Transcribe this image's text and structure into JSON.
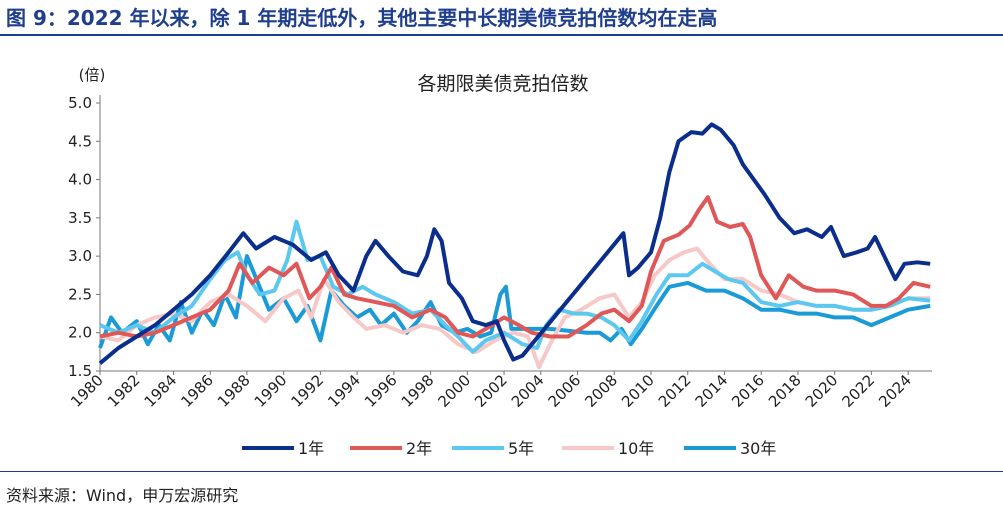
{
  "figure": {
    "title": "图 9：2022 年以来，除 1 年期走低外，其他主要中长期美债竞拍倍数均在走高",
    "source": "资料来源：Wind，申万宏源研究"
  },
  "chart_data": {
    "type": "line",
    "title": "各期限美债竞拍倍数",
    "ylabel": "(倍)",
    "xlabel": "",
    "xlim": [
      1980,
      2025.3
    ],
    "ylim": [
      1.5,
      5.0
    ],
    "yticks": [
      "1.5",
      "2.0",
      "2.5",
      "3.0",
      "3.5",
      "4.0",
      "4.5",
      "5.0"
    ],
    "xticks": [
      "1980",
      "1982",
      "1984",
      "1986",
      "1988",
      "1990",
      "1992",
      "1994",
      "1996",
      "1998",
      "2000",
      "2002",
      "2004",
      "2006",
      "2008",
      "2010",
      "2012",
      "2014",
      "2016",
      "2018",
      "2020",
      "2022",
      "2024"
    ],
    "legend_position": "bottom",
    "grid": false,
    "series": [
      {
        "name": "1年",
        "color": "#0b2d8c",
        "points": [
          [
            1980,
            1.6
          ],
          [
            1981,
            1.8
          ],
          [
            1982,
            1.95
          ],
          [
            1983,
            2.1
          ],
          [
            1984,
            2.3
          ],
          [
            1985,
            2.5
          ],
          [
            1986,
            2.75
          ],
          [
            1987,
            3.05
          ],
          [
            1987.8,
            3.3
          ],
          [
            1988.5,
            3.1
          ],
          [
            1989.5,
            3.25
          ],
          [
            1990.5,
            3.15
          ],
          [
            1991.5,
            2.95
          ],
          [
            1992.3,
            3.05
          ],
          [
            1993,
            2.75
          ],
          [
            1993.8,
            2.55
          ],
          [
            1994.5,
            3.0
          ],
          [
            1995,
            3.2
          ],
          [
            1995.7,
            3.0
          ],
          [
            1996.5,
            2.8
          ],
          [
            1997.3,
            2.75
          ],
          [
            1997.8,
            3.0
          ],
          [
            1998.2,
            3.35
          ],
          [
            1998.6,
            3.2
          ],
          [
            1999,
            2.65
          ],
          [
            1999.7,
            2.45
          ],
          [
            2000.3,
            2.15
          ],
          [
            2001,
            2.1
          ],
          [
            2001.6,
            2.15
          ],
          [
            2002,
            1.9
          ],
          [
            2002.5,
            1.65
          ],
          [
            2003,
            1.7
          ],
          [
            2008.5,
            3.3
          ],
          [
            2008.8,
            2.75
          ],
          [
            2009.3,
            2.85
          ],
          [
            2010,
            3.05
          ],
          [
            2010.5,
            3.5
          ],
          [
            2011,
            4.1
          ],
          [
            2011.5,
            4.5
          ],
          [
            2012.2,
            4.62
          ],
          [
            2012.8,
            4.6
          ],
          [
            2013.3,
            4.72
          ],
          [
            2013.8,
            4.65
          ],
          [
            2014.5,
            4.45
          ],
          [
            2015,
            4.2
          ],
          [
            2015.6,
            4.0
          ],
          [
            2016.2,
            3.8
          ],
          [
            2017,
            3.5
          ],
          [
            2017.8,
            3.3
          ],
          [
            2018.5,
            3.35
          ],
          [
            2019.3,
            3.25
          ],
          [
            2019.8,
            3.38
          ],
          [
            2020.5,
            3.0
          ],
          [
            2021.2,
            3.05
          ],
          [
            2021.8,
            3.1
          ],
          [
            2022.2,
            3.25
          ],
          [
            2022.8,
            2.95
          ],
          [
            2023.3,
            2.7
          ],
          [
            2023.8,
            2.9
          ],
          [
            2024.5,
            2.92
          ],
          [
            2025.2,
            2.9
          ]
        ]
      },
      {
        "name": "2年",
        "color": "#e05757",
        "points": [
          [
            1980,
            1.95
          ],
          [
            1981,
            2.0
          ],
          [
            1982,
            1.95
          ],
          [
            1983,
            2.0
          ],
          [
            1984,
            2.1
          ],
          [
            1985,
            2.2
          ],
          [
            1986,
            2.3
          ],
          [
            1987,
            2.55
          ],
          [
            1987.6,
            2.9
          ],
          [
            1988.3,
            2.65
          ],
          [
            1989.2,
            2.85
          ],
          [
            1990,
            2.75
          ],
          [
            1990.7,
            2.9
          ],
          [
            1991.4,
            2.45
          ],
          [
            1992,
            2.6
          ],
          [
            1992.6,
            2.85
          ],
          [
            1993.3,
            2.5
          ],
          [
            1994,
            2.45
          ],
          [
            1995,
            2.4
          ],
          [
            1996,
            2.35
          ],
          [
            1997,
            2.2
          ],
          [
            1998,
            2.3
          ],
          [
            1998.8,
            2.2
          ],
          [
            1999.5,
            2.0
          ],
          [
            2000.3,
            1.95
          ],
          [
            2001,
            2.05
          ],
          [
            2002,
            2.2
          ],
          [
            2002.8,
            2.1
          ],
          [
            2003.5,
            2.0
          ],
          [
            2004.5,
            1.95
          ],
          [
            2005.5,
            1.95
          ],
          [
            2006.5,
            2.1
          ],
          [
            2007.3,
            2.25
          ],
          [
            2008,
            2.3
          ],
          [
            2008.8,
            2.15
          ],
          [
            2009.5,
            2.35
          ],
          [
            2010,
            2.8
          ],
          [
            2010.7,
            3.2
          ],
          [
            2011.5,
            3.28
          ],
          [
            2012.1,
            3.4
          ],
          [
            2012.6,
            3.6
          ],
          [
            2013.1,
            3.77
          ],
          [
            2013.6,
            3.45
          ],
          [
            2014.3,
            3.38
          ],
          [
            2015,
            3.42
          ],
          [
            2015.4,
            3.25
          ],
          [
            2016,
            2.75
          ],
          [
            2016.8,
            2.45
          ],
          [
            2017.5,
            2.75
          ],
          [
            2018.3,
            2.6
          ],
          [
            2019,
            2.55
          ],
          [
            2020,
            2.55
          ],
          [
            2021,
            2.5
          ],
          [
            2022,
            2.35
          ],
          [
            2022.8,
            2.35
          ],
          [
            2023.5,
            2.45
          ],
          [
            2024.3,
            2.65
          ],
          [
            2025.2,
            2.6
          ]
        ]
      },
      {
        "name": "5年",
        "color": "#5cc8ef",
        "points": [
          [
            1980,
            2.1
          ],
          [
            1981,
            2.0
          ],
          [
            1982,
            2.1
          ],
          [
            1983,
            2.0
          ],
          [
            1984,
            2.2
          ],
          [
            1985,
            2.35
          ],
          [
            1986,
            2.7
          ],
          [
            1986.8,
            2.95
          ],
          [
            1987.5,
            3.05
          ],
          [
            1988,
            2.75
          ],
          [
            1988.7,
            2.5
          ],
          [
            1989.5,
            2.55
          ],
          [
            1990.2,
            2.95
          ],
          [
            1990.7,
            3.45
          ],
          [
            1991.3,
            2.95
          ],
          [
            1992,
            3.0
          ],
          [
            1992.7,
            2.6
          ],
          [
            1993.5,
            2.5
          ],
          [
            1994.3,
            2.6
          ],
          [
            1995,
            2.5
          ],
          [
            1996,
            2.4
          ],
          [
            1997,
            2.25
          ],
          [
            1998,
            2.3
          ],
          [
            1998.8,
            2.1
          ],
          [
            1999.5,
            1.95
          ],
          [
            2000.3,
            1.75
          ],
          [
            2001,
            1.9
          ],
          [
            2002,
            2.0
          ],
          [
            2003,
            1.85
          ],
          [
            2003.8,
            1.8
          ],
          [
            2004.3,
            2.1
          ],
          [
            2005,
            2.3
          ],
          [
            2005.8,
            2.25
          ],
          [
            2006.5,
            2.25
          ],
          [
            2007.3,
            2.2
          ],
          [
            2008,
            2.1
          ],
          [
            2008.8,
            1.9
          ],
          [
            2009.5,
            2.15
          ],
          [
            2010.3,
            2.5
          ],
          [
            2011,
            2.75
          ],
          [
            2012,
            2.75
          ],
          [
            2012.8,
            2.9
          ],
          [
            2013.5,
            2.8
          ],
          [
            2014.2,
            2.7
          ],
          [
            2015,
            2.65
          ],
          [
            2016,
            2.4
          ],
          [
            2017,
            2.35
          ],
          [
            2018,
            2.4
          ],
          [
            2019,
            2.35
          ],
          [
            2020,
            2.35
          ],
          [
            2021,
            2.3
          ],
          [
            2022,
            2.3
          ],
          [
            2023,
            2.35
          ],
          [
            2024,
            2.45
          ],
          [
            2025.2,
            2.42
          ]
        ]
      },
      {
        "name": "10年",
        "color": "#f6c8c8",
        "points": [
          [
            1980,
            1.95
          ],
          [
            1981,
            1.9
          ],
          [
            1982,
            2.1
          ],
          [
            1983,
            2.2
          ],
          [
            1984,
            2.25
          ],
          [
            1985,
            2.15
          ],
          [
            1986,
            2.4
          ],
          [
            1987,
            2.5
          ],
          [
            1988,
            2.35
          ],
          [
            1989,
            2.15
          ],
          [
            1990,
            2.45
          ],
          [
            1990.8,
            2.55
          ],
          [
            1991.5,
            2.2
          ],
          [
            1992.2,
            2.7
          ],
          [
            1993,
            2.4
          ],
          [
            1993.8,
            2.2
          ],
          [
            1994.5,
            2.05
          ],
          [
            1995.5,
            2.1
          ],
          [
            1996.5,
            2.0
          ],
          [
            1997.5,
            2.1
          ],
          [
            1998.5,
            2.05
          ],
          [
            1999.5,
            1.85
          ],
          [
            2000.5,
            1.75
          ],
          [
            2001.5,
            1.9
          ],
          [
            2002.5,
            2.0
          ],
          [
            2003.3,
            1.95
          ],
          [
            2003.9,
            1.55
          ],
          [
            2004.5,
            1.85
          ],
          [
            2005.3,
            2.2
          ],
          [
            2006.2,
            2.3
          ],
          [
            2007.2,
            2.45
          ],
          [
            2008,
            2.5
          ],
          [
            2008.8,
            2.2
          ],
          [
            2009.5,
            2.4
          ],
          [
            2010.2,
            2.75
          ],
          [
            2011,
            2.95
          ],
          [
            2011.8,
            3.05
          ],
          [
            2012.5,
            3.1
          ],
          [
            2013.2,
            2.9
          ],
          [
            2014,
            2.7
          ],
          [
            2015,
            2.7
          ],
          [
            2016,
            2.55
          ],
          [
            2017,
            2.5
          ],
          [
            2018,
            2.4
          ],
          [
            2019,
            2.35
          ],
          [
            2020,
            2.35
          ],
          [
            2021,
            2.3
          ],
          [
            2022,
            2.3
          ],
          [
            2023,
            2.35
          ],
          [
            2024,
            2.45
          ],
          [
            2025.2,
            2.45
          ]
        ]
      },
      {
        "name": "30年",
        "color": "#1a9ad6",
        "points": [
          [
            1980,
            1.8
          ],
          [
            1980.6,
            2.2
          ],
          [
            1981.2,
            2.0
          ],
          [
            1982,
            2.15
          ],
          [
            1982.6,
            1.85
          ],
          [
            1983.2,
            2.1
          ],
          [
            1983.8,
            1.9
          ],
          [
            1984.4,
            2.4
          ],
          [
            1985,
            2.0
          ],
          [
            1985.6,
            2.3
          ],
          [
            1986.2,
            2.1
          ],
          [
            1986.8,
            2.5
          ],
          [
            1987.4,
            2.2
          ],
          [
            1988,
            3.0
          ],
          [
            1988.6,
            2.65
          ],
          [
            1989.2,
            2.3
          ],
          [
            1990,
            2.45
          ],
          [
            1990.7,
            2.15
          ],
          [
            1991.3,
            2.35
          ],
          [
            1992,
            1.9
          ],
          [
            1992.6,
            2.55
          ],
          [
            1993.3,
            2.35
          ],
          [
            1994,
            2.2
          ],
          [
            1994.7,
            2.3
          ],
          [
            1995.3,
            2.1
          ],
          [
            1996,
            2.25
          ],
          [
            1996.7,
            2.0
          ],
          [
            1997.3,
            2.15
          ],
          [
            1998,
            2.4
          ],
          [
            1998.6,
            2.1
          ],
          [
            1999.3,
            2.0
          ],
          [
            2000,
            2.05
          ],
          [
            2000.7,
            1.95
          ],
          [
            2001.3,
            2.0
          ],
          [
            2001.8,
            2.5
          ],
          [
            2002.1,
            2.6
          ],
          [
            2002.4,
            2.05
          ],
          [
            2002.8,
            2.05
          ],
          [
            2003.5,
            2.05
          ],
          [
            2004.5,
            2.05
          ],
          [
            2006.5,
            2.0
          ],
          [
            2007.2,
            2.0
          ],
          [
            2007.8,
            1.9
          ],
          [
            2008.4,
            2.05
          ],
          [
            2008.9,
            1.85
          ],
          [
            2009.5,
            2.05
          ],
          [
            2010.3,
            2.35
          ],
          [
            2011,
            2.6
          ],
          [
            2012,
            2.65
          ],
          [
            2013,
            2.55
          ],
          [
            2014,
            2.55
          ],
          [
            2015,
            2.45
          ],
          [
            2016,
            2.3
          ],
          [
            2017,
            2.3
          ],
          [
            2018,
            2.25
          ],
          [
            2019,
            2.25
          ],
          [
            2020,
            2.2
          ],
          [
            2021,
            2.2
          ],
          [
            2022,
            2.1
          ],
          [
            2023,
            2.2
          ],
          [
            2024,
            2.3
          ],
          [
            2025.2,
            2.35
          ]
        ]
      }
    ]
  }
}
